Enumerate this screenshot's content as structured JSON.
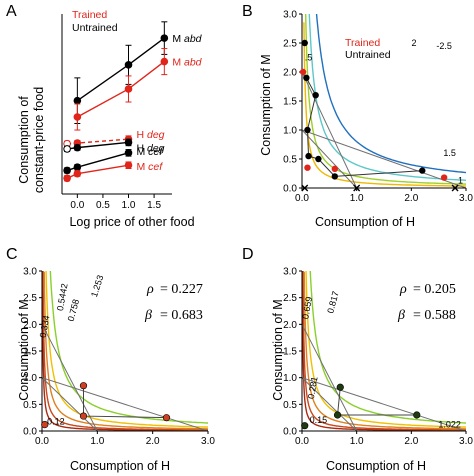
{
  "figure": {
    "panels": [
      "A",
      "B",
      "C",
      "D"
    ]
  },
  "colors": {
    "trained": "#e0251b",
    "untrained": "#000000",
    "gray": "#707070"
  },
  "chart_data": [
    {
      "panel": "A",
      "type": "line",
      "xlabel": "Log price of other food",
      "ylabel": "Consumption of constant-price food",
      "xlim": [
        -0.3,
        1.85
      ],
      "ylim": [
        0,
        2.7
      ],
      "xticks": [
        "0.0",
        "0.5",
        "1.0",
        "1.5"
      ],
      "legend": [
        "Trained",
        "Untrained"
      ],
      "series": [
        {
          "group": "Untrained",
          "label": "M abd",
          "prefix": "M ",
          "suffix": "abd",
          "x": [
            0,
            1,
            1.7
          ],
          "y": [
            1.37,
            1.92,
            2.33
          ],
          "err": [
            0.35,
            0.3,
            0.25
          ],
          "dashed": false
        },
        {
          "group": "Trained",
          "label": "M abd",
          "prefix": "M ",
          "suffix": "abd",
          "x": [
            0,
            1,
            1.7
          ],
          "y": [
            1.12,
            1.55,
            1.97
          ],
          "err": [
            0.2,
            0.2,
            0.2
          ],
          "dashed": false
        },
        {
          "group": "Trained",
          "label": "H deg",
          "prefix": "H ",
          "suffix": "deg",
          "x": [
            -0.2,
            0,
            1
          ],
          "y": [
            0.71,
            0.72,
            0.78
          ],
          "err": [
            0.04,
            0.04,
            0.05
          ],
          "dashed": true
        },
        {
          "group": "Untrained",
          "label": "H deg",
          "prefix": "H ",
          "suffix": "deg",
          "x": [
            -0.2,
            0,
            1
          ],
          "y": [
            0.63,
            0.65,
            0.73
          ],
          "err": [
            0.04,
            0.04,
            0.05
          ],
          "dashed": false
        },
        {
          "group": "Untrained",
          "label": "M cef",
          "prefix": "M ",
          "suffix": "cef",
          "x": [
            -0.2,
            0,
            1
          ],
          "y": [
            0.3,
            0.35,
            0.57
          ],
          "err": [
            0.04,
            0.04,
            0.05
          ],
          "dashed": false
        },
        {
          "group": "Trained",
          "label": "M cef",
          "prefix": "M ",
          "suffix": "cef",
          "x": [
            -0.2,
            0,
            1
          ],
          "y": [
            0.18,
            0.25,
            0.38
          ],
          "err": [
            0.04,
            0.04,
            0.05
          ],
          "dashed": false
        }
      ]
    },
    {
      "panel": "B",
      "type": "line",
      "xlabel": "Consumption of H",
      "ylabel": "Consumption of M",
      "xlim": [
        0,
        3
      ],
      "ylim": [
        0,
        3
      ],
      "xticks": [
        "0.0",
        "1.0",
        "2.0",
        "3.0"
      ],
      "yticks": [
        "0.0",
        "0.5",
        "1.0",
        "1.5",
        "2.0",
        "2.5",
        "3.0"
      ],
      "legend": [
        "Trained",
        "Untrained"
      ],
      "indifference_curves": [
        {
          "level": "1",
          "k": 0.1,
          "color": "#f0b800"
        },
        {
          "level": "1.5",
          "k": 0.2,
          "color": "#9ed02a"
        },
        {
          "level": "2",
          "k": 0.4,
          "color": "#5cc8c8"
        },
        {
          "level": "2.5",
          "k": 0.8,
          "color": "#2070c0"
        }
      ],
      "iso_labels": [
        "1",
        "1.5",
        "2",
        "-2.5",
        ".5"
      ],
      "budget_lines": [
        [
          [
            0,
            2.0
          ],
          [
            1.0,
            0
          ]
        ],
        [
          [
            0,
            1.0
          ],
          [
            3.0,
            0
          ]
        ],
        [
          [
            0,
            1.0
          ],
          [
            1.0,
            0
          ]
        ]
      ],
      "points_untrained": [
        [
          0.05,
          2.5
        ],
        [
          0.08,
          1.9
        ],
        [
          0.25,
          1.6
        ],
        [
          0.1,
          1.0
        ],
        [
          0.12,
          0.55
        ],
        [
          0.3,
          0.5
        ],
        [
          0.6,
          0.2
        ],
        [
          2.2,
          0.3
        ],
        [
          0.05,
          0.0
        ],
        [
          1.0,
          0.0
        ],
        [
          2.8,
          0.0
        ]
      ],
      "points_trained": [
        [
          0.02,
          2.0
        ],
        [
          0.1,
          0.35
        ],
        [
          2.6,
          0.18
        ],
        [
          0.6,
          0.33
        ]
      ]
    },
    {
      "panel": "C",
      "type": "line",
      "xlabel": "Consumption of H",
      "ylabel": "Consumption of M",
      "xlim": [
        0,
        3
      ],
      "ylim": [
        0,
        3
      ],
      "xticks": [
        "0.0",
        "1.0",
        "2.0",
        "3.0"
      ],
      "yticks": [
        "0.0",
        "0.5",
        "1.0",
        "1.5",
        "2.0",
        "2.5",
        "3.0"
      ],
      "stats": {
        "rho_symbol": "ρ",
        "rho": "= 0.227",
        "beta_symbol": "β",
        "beta": "= 0.683"
      },
      "iso_labels": [
        "0.12",
        "0.334",
        "0.5442",
        "0.758",
        "1.253"
      ],
      "indifference_curves": [
        {
          "k": 0.03,
          "color": "#a82a12"
        },
        {
          "k": 0.06,
          "color": "#c8481a"
        },
        {
          "k": 0.12,
          "color": "#e08020"
        },
        {
          "k": 0.22,
          "color": "#f0c000"
        },
        {
          "k": 0.45,
          "color": "#8ad02a"
        }
      ],
      "budget_lines": [
        [
          [
            0,
            2.0
          ],
          [
            1.0,
            0
          ]
        ],
        [
          [
            0,
            1.0
          ],
          [
            3.0,
            0
          ]
        ],
        [
          [
            0,
            1.0
          ],
          [
            1.0,
            0
          ]
        ]
      ],
      "points": [
        [
          0.75,
          0.85
        ],
        [
          0.75,
          0.28
        ],
        [
          2.25,
          0.25
        ],
        [
          0.05,
          0.12
        ]
      ]
    },
    {
      "panel": "D",
      "type": "line",
      "xlabel": "Consumption of H",
      "ylabel": "Consumption of M",
      "xlim": [
        0,
        3
      ],
      "ylim": [
        0,
        3
      ],
      "xticks": [
        "0.0",
        "1.0",
        "2.0",
        "3.0"
      ],
      "yticks": [
        "0.0",
        "0.5",
        "1.0",
        "1.5",
        "2.0",
        "2.5",
        "3.0"
      ],
      "stats": {
        "rho_symbol": "ρ",
        "rho": "= 0.205",
        "beta_symbol": "β",
        "beta": "= 0.588"
      },
      "iso_labels": [
        "0.15",
        "0.281",
        "0.659",
        "0.817",
        "1.022"
      ],
      "indifference_curves": [
        {
          "k": 0.03,
          "color": "#a82a12"
        },
        {
          "k": 0.06,
          "color": "#c8481a"
        },
        {
          "k": 0.12,
          "color": "#e08020"
        },
        {
          "k": 0.22,
          "color": "#f0c000"
        },
        {
          "k": 0.45,
          "color": "#8ad02a"
        }
      ],
      "budget_lines": [
        [
          [
            0,
            2.0
          ],
          [
            1.0,
            0
          ]
        ],
        [
          [
            0,
            1.0
          ],
          [
            3.0,
            0
          ]
        ],
        [
          [
            0,
            1.0
          ],
          [
            1.0,
            0
          ]
        ]
      ],
      "points": [
        [
          0.7,
          0.82
        ],
        [
          0.65,
          0.3
        ],
        [
          2.1,
          0.3
        ],
        [
          0.05,
          0.1
        ]
      ]
    }
  ]
}
